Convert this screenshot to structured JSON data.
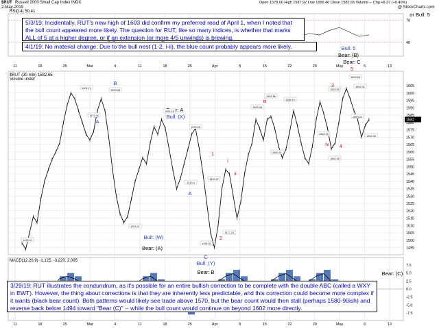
{
  "header": {
    "symbol": "$RUT",
    "name": "Russell 2000 Small Cap Index  INDX",
    "date": "2-May-2019",
    "quote": "Open 1578.00  High 1587.92  Low 1566.46  Close 1582.65  Volume --  Chg +8.27 (+0.40%)",
    "watermark": "@ StockCharts.com",
    "rsi_label": "RSI(14) 50.41",
    "price_label": "$RUT (30 min) 1582.65",
    "volume_label": "Volume undef",
    "macd_label": "MACD(12,26,9) -1.125, -3.220, 2.095"
  },
  "notes": {
    "n1": "5/3/19:  Incidentally, RUT's new high of 1603 did confirm my preferred read of April 1, when I noted that the bull count appeared more likely.  The question for RUT, like so many indices, is whether that marks ALL of 5 at a higher degree, or if an extension (or more 4/5 unwinds) is brewing.",
    "n2": "4/1/19:  No material change.  Due to the bull nest (1-2, i-ii), the blue count probably appears more likely.",
    "n3": "3/29/19:  RUT illustrates the condundrum, as it's possible for an entire bullish correction to be complete with the double ABC (called a WXY in EWT).  However, the thing about corrections is that they are inherently less predictable, and this correction could become more complex if it wants (black bear count).  Both patterns would likely see trade above 1570, but the bear count would then stall (perhaps 1580-90ish) and reverse back below 1494 toward \"Bear (C)\" -- while the bull count would continue on beyond 1602 more directly."
  },
  "colors": {
    "price": "#111111",
    "blue": "#1a3fd0",
    "red": "#d01010",
    "black": "#000000",
    "grid": "#d4d4d4",
    "macd_hist": "#1f4fa0"
  },
  "chart_data": {
    "type": "line",
    "title": "$RUT Russell 2000 Small Cap Index (30 min)",
    "xlabel": "",
    "ylabel": "",
    "x_ticks": [
      "11",
      "18",
      "25",
      "Mar",
      "4",
      "11",
      "18",
      "25",
      "Apr",
      "8",
      "15",
      "22",
      "29",
      "May",
      "6",
      "13"
    ],
    "y_ticks": [
      1495,
      1500,
      1505,
      1510,
      1515,
      1520,
      1525,
      1530,
      1535,
      1540,
      1545,
      1550,
      1555,
      1560,
      1565,
      1570,
      1575,
      1580,
      1585,
      1590,
      1595,
      1600,
      1605
    ],
    "ylim": [
      1492,
      1612
    ],
    "series": [
      {
        "values": [
          1498,
          1494,
          1505,
          1516,
          1512,
          1528,
          1540,
          1548,
          1555,
          1560,
          1566,
          1580,
          1592,
          1600,
          1596,
          1588,
          1580,
          1572,
          1568,
          1574,
          1588,
          1596,
          1588,
          1570,
          1548,
          1530,
          1518,
          1512,
          1516,
          1528,
          1540,
          1548,
          1556,
          1552,
          1566,
          1577,
          1572,
          1582,
          1576,
          1562,
          1548,
          1535,
          1542,
          1552,
          1562,
          1572,
          1576,
          1562,
          1545,
          1525,
          1505,
          1495,
          1510,
          1535,
          1548,
          1545,
          1530,
          1515,
          1526,
          1545,
          1558,
          1566,
          1582,
          1576,
          1568,
          1582,
          1584,
          1576,
          1564,
          1556,
          1562,
          1574,
          1588,
          1578,
          1566,
          1556,
          1552,
          1564,
          1582,
          1594,
          1586,
          1576,
          1562,
          1566,
          1580,
          1596,
          1603,
          1596,
          1588,
          1582,
          1570,
          1578,
          1582
        ]
      }
    ],
    "labels_price": [
      "1495.47",
      "1601.11",
      "1593.34",
      "1574.94",
      "1581.16",
      "1508.47",
      "1578.35",
      "1543.4",
      "1583.48",
      "1550.41",
      "1494.62",
      "1532.87",
      "1517.25",
      "1591.86",
      "1596.19",
      "1562.29",
      "1562.48",
      "1583.96",
      "1603.56",
      "1594.32",
      "1590.93",
      "1566.46"
    ],
    "wave_labels_blue": [
      "B",
      "A",
      "Bull: (X)",
      "A",
      "Bull: (W)",
      "C",
      "Bull: (Y)",
      "Bull: 5"
    ],
    "wave_labels_black": [
      "Bear: A",
      "Bear: (A)",
      "Bear: B",
      "Bear: (B)",
      "Bear: C",
      "Bear: (C)",
      "or Bull: 5"
    ],
    "wave_labels_red": [
      "i",
      "ii",
      "iii",
      "iv",
      "1",
      "2",
      "3",
      "4",
      "5"
    ],
    "rsi": {
      "values": [
        50,
        48,
        55,
        60,
        62,
        58,
        54,
        50,
        46,
        40,
        44,
        48,
        52,
        50,
        42,
        38,
        30,
        34,
        45,
        55,
        60,
        62,
        58,
        52,
        56,
        60,
        54,
        50,
        48,
        52,
        50,
        56,
        60,
        54,
        48,
        50
      ],
      "ticks": [
        40,
        70
      ]
    },
    "macd": {
      "values": [
        -1,
        -3,
        -4,
        -2,
        1,
        4,
        5,
        4,
        2,
        -1,
        -4,
        -6,
        -7,
        -5,
        -2,
        2,
        4,
        5,
        3,
        0,
        -2,
        -5,
        -8,
        -7,
        -4,
        0,
        3,
        5,
        6,
        4,
        2,
        0,
        -1,
        3,
        5,
        6,
        4,
        2,
        3,
        5,
        6,
        3,
        0,
        -2,
        -3,
        -1
      ],
      "ticks": [
        -7.5,
        -5.0,
        -2.5,
        0.0,
        2.5,
        5.0,
        7.5
      ]
    }
  }
}
